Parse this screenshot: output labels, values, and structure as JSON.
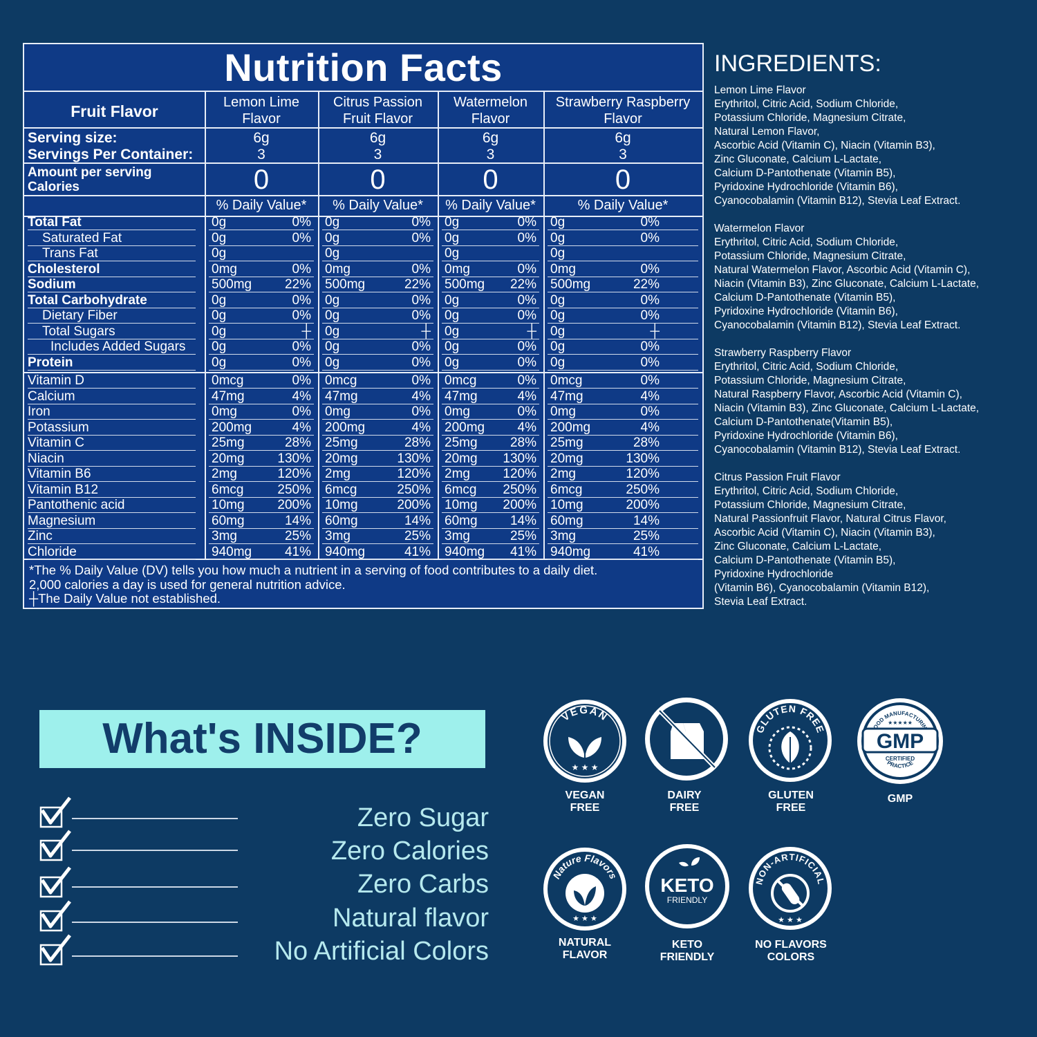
{
  "nutrition": {
    "title": "Nutrition Facts",
    "header_label": "Fruit Flavor",
    "flavors": [
      {
        "line1": "Lemon Lime",
        "line2": "Flavor"
      },
      {
        "line1": "Citrus Passion",
        "line2": "Fruit Flavor"
      },
      {
        "line1": "Watermelon",
        "line2": "Flavor"
      },
      {
        "line1": "Strawberry Raspberry",
        "line2": "Flavor"
      }
    ],
    "serving_size_label": "Serving size:",
    "servings_label": "Servings Per Container:",
    "serving_size": "6g",
    "servings": "3",
    "amount_label": "Amount per serving",
    "calories_label": "Calories",
    "calories": "0",
    "dv_header": "% Daily Value*",
    "rows": [
      {
        "label": "Total Fat",
        "amt": "0g",
        "pct": "0%"
      },
      {
        "label": "Saturated Fat",
        "amt": "0g",
        "pct": "0%"
      },
      {
        "label": "Trans Fat",
        "amt": "0g",
        "pct": ""
      },
      {
        "label": "Cholesterol",
        "amt": "0mg",
        "pct": "0%"
      },
      {
        "label": "Sodium",
        "amt": "500mg",
        "pct": "22%"
      },
      {
        "label": "Total Carbohydrate",
        "amt": "0g",
        "pct": "0%"
      },
      {
        "label": "Dietary Fiber",
        "amt": "0g",
        "pct": "0%"
      },
      {
        "label": "Total Sugars",
        "amt": "0g",
        "pct": "┼"
      },
      {
        "label": "Includes Added Sugars",
        "amt": "0g",
        "pct": "0%"
      },
      {
        "label": "Protein",
        "amt": "0g",
        "pct": "0%"
      }
    ],
    "vitamins": [
      {
        "label": "Vitamin D",
        "amt": "0mcg",
        "pct": "0%"
      },
      {
        "label": "Calcium",
        "amt": "47mg",
        "pct": "4%"
      },
      {
        "label": "Iron",
        "amt": "0mg",
        "pct": "0%"
      },
      {
        "label": "Potassium",
        "amt": "200mg",
        "pct": "4%"
      },
      {
        "label": "Vitamin C",
        "amt": "25mg",
        "pct": "28%"
      },
      {
        "label": "Niacin",
        "amt": "20mg",
        "pct": "130%"
      },
      {
        "label": "Vitamin B6",
        "amt": "2mg",
        "pct": "120%"
      },
      {
        "label": "Vitamin B12",
        "amt": "6mcg",
        "pct": "250%"
      },
      {
        "label": "Pantothenic acid",
        "amt": "10mg",
        "pct": "200%"
      },
      {
        "label": "Magnesium",
        "amt": "60mg",
        "pct": "14%"
      },
      {
        "label": "Zinc",
        "amt": "3mg",
        "pct": "25%"
      },
      {
        "label": "Chloride",
        "amt": "940mg",
        "pct": "41%"
      }
    ],
    "footnote": [
      "*The % Daily Value (DV) tells you how much a nutrient in a serving of food contributes to a daily diet.",
      "2,000 calories a day is used for general nutrition advice.",
      "┼The Daily Value not established."
    ]
  },
  "ingredients": {
    "title": "INGREDIENTS:",
    "blocks": [
      [
        "Lemon Lime Flavor",
        "Erythritol, Citric Acid, Sodium Chloride,",
        "Potassium Chloride, Magnesium Citrate,",
        "Natural Lemon Flavor,",
        "Ascorbic Acid (Vitamin C), Niacin (Vitamin B3),",
        "Zinc Gluconate, Calcium L-Lactate,",
        "Calcium D-Pantothenate (Vitamin B5),",
        "Pyridoxine Hydrochloride (Vitamin B6),",
        "Cyanocobalamin (Vitamin B12), Stevia Leaf Extract."
      ],
      [
        "Watermelon Flavor",
        "Erythritol, Citric Acid, Sodium Chloride,",
        "Potassium Chloride, Magnesium Citrate,",
        "Natural Watermelon Flavor, Ascorbic Acid (Vitamin C),",
        "Niacin (Vitamin B3), Zinc Gluconate, Calcium L-Lactate,",
        "Calcium D-Pantothenate (Vitamin B5),",
        "Pyridoxine Hydrochloride (Vitamin B6),",
        "Cyanocobalamin (Vitamin B12), Stevia Leaf Extract."
      ],
      [
        "Strawberry Raspberry Flavor",
        "Erythritol, Citric Acid, Sodium Chloride,",
        "Potassium Chloride, Magnesium Citrate,",
        "Natural Raspberry Flavor, Ascorbic Acid (Vitamin C),",
        "Niacin (Vitamin B3), Zinc Gluconate, Calcium L-Lactate,",
        "Calcium D-Pantothenate(Vitamin B5),",
        "Pyridoxine Hydrochloride (Vitamin B6),",
        "Cyanocobalamin (Vitamin B12), Stevia Leaf Extract."
      ],
      [
        "Citrus Passion Fruit Flavor",
        "Erythritol, Citric Acid, Sodium Chloride,",
        "Potassium Chloride, Magnesium Citrate,",
        "Natural Passionfruit Flavor, Natural Citrus Flavor,",
        "Ascorbic Acid (Vitamin C), Niacin (Vitamin B3),",
        "Zinc Gluconate, Calcium L-Lactate,",
        "Calcium D-Pantothenate (Vitamin B5),",
        "Pyridoxine Hydrochloride",
        "(Vitamin B6), Cyanocobalamin (Vitamin B12),",
        "Stevia Leaf Extract."
      ]
    ]
  },
  "inside": {
    "title": "What's INSIDE?",
    "claims": [
      "Zero Sugar",
      "Zero Calories",
      "Zero Carbs",
      "Natural flavor",
      "No Artificial Colors"
    ]
  },
  "badges": {
    "vegan_ring": "VEGAN",
    "vegan_label1": "VEGAN",
    "vegan_label2": "FREE",
    "dairy_label1": "DAIRY",
    "dairy_label2": "FREE",
    "gluten_ring": "GLUTEN FREE",
    "gluten_label1": "GLUTEN",
    "gluten_label2": "FREE",
    "gmp_top": "GOOD MANUFACTURING",
    "gmp_main": "GMP",
    "gmp_certified": "CERTIFIED",
    "gmp_bottom": "PRACTICE",
    "gmp_label": "GMP",
    "nature_ring": "Nature Flavors",
    "nature_label1": "NATURAL",
    "nature_label2": "FLAVOR",
    "keto_main": "KETO",
    "keto_sub": "FRIENDLY",
    "keto_label1": "KETO",
    "keto_label2": "FRIENDLY",
    "nonart_ring": "NON-ARTIFICIAL",
    "nonart_label1": "NO FLAVORS",
    "nonart_label2": "COLORS"
  },
  "colors": {
    "background": "#0d3a63",
    "table": "#0f3a86",
    "inside_box": "#9ef0ec",
    "claim_text": "#b6e9ee"
  }
}
